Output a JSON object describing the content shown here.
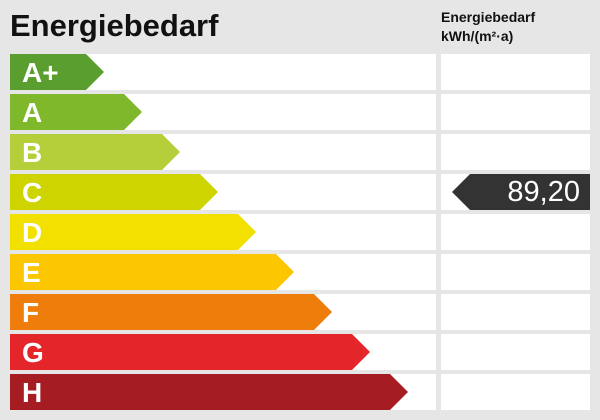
{
  "chart_data": {
    "type": "bar",
    "title": "Energiebedarf",
    "value_column_header": [
      "Energiebedarf",
      "kWh/(m²·a)"
    ],
    "categories": [
      "A+",
      "A",
      "B",
      "C",
      "D",
      "E",
      "F",
      "G",
      "H"
    ],
    "colors": [
      "#5a9e2f",
      "#7fb82a",
      "#b5cf3a",
      "#cdd400",
      "#f2e000",
      "#fcc600",
      "#ee7d0b",
      "#e4262b",
      "#a61c23"
    ],
    "marker": {
      "class": "C",
      "value": "89,20",
      "color": "#333333"
    }
  }
}
